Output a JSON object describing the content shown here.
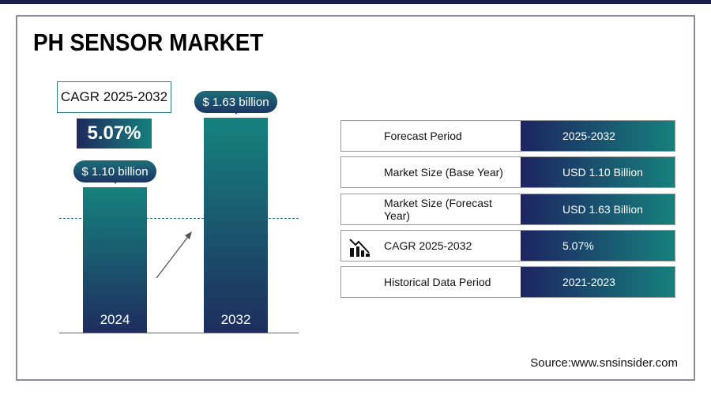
{
  "title": "PH SENSOR MARKET",
  "cagr": {
    "label": "CAGR 2025-2032",
    "value": "5.07%"
  },
  "chart_data": {
    "type": "bar",
    "categories": [
      "2024",
      "2032"
    ],
    "values": [
      1.1,
      1.63
    ],
    "data_labels": [
      "$ 1.10 billion",
      "$ 1.63 billion"
    ],
    "unit": "USD billion"
  },
  "table": [
    {
      "label": "Forecast Period",
      "value": "2025-2032"
    },
    {
      "label": "Market Size (Base Year)",
      "value": "USD 1.10 Billion"
    },
    {
      "label": "Market Size (Forecast Year)",
      "value": "USD 1.63 Billion"
    },
    {
      "label": "CAGR 2025-2032",
      "value": "5.07%",
      "icon": "chart-decline-icon"
    },
    {
      "label": "Historical Data Period",
      "value": "2021-2023"
    }
  ],
  "source": "Source:www.snsinsider.com",
  "colors": {
    "navy": "#1d2461",
    "teal": "#16807c"
  }
}
